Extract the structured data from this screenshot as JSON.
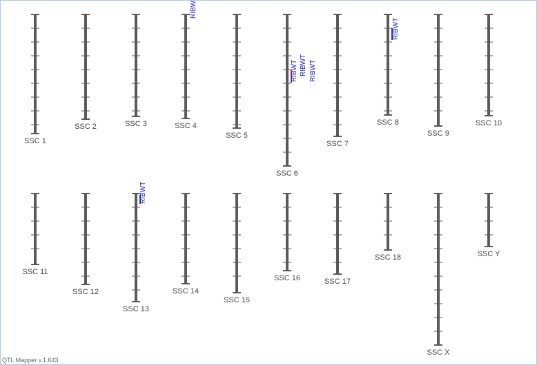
{
  "chromosomes": [
    {
      "label": "SSC 1",
      "qtls": []
    },
    {
      "label": "SSC 2",
      "qtls": []
    },
    {
      "label": "SSC 3",
      "qtls": []
    },
    {
      "label": "SSC 4",
      "qtls": [
        {
          "label": "RIBWT"
        }
      ]
    },
    {
      "label": "SSC 5",
      "qtls": []
    },
    {
      "label": "SSC 6",
      "qtls": [
        {
          "label": "RIBWT"
        },
        {
          "label": "RIBWT"
        },
        {
          "label": "RIBWT"
        }
      ]
    },
    {
      "label": "SSC 7",
      "qtls": []
    },
    {
      "label": "SSC 8",
      "qtls": [
        {
          "label": "RIBWT"
        }
      ]
    },
    {
      "label": "SSC 9",
      "qtls": []
    },
    {
      "label": "SSC 10",
      "qtls": []
    },
    {
      "label": "SSC 11",
      "qtls": []
    },
    {
      "label": "SSC 12",
      "qtls": []
    },
    {
      "label": "SSC 13",
      "qtls": [
        {
          "label": "RIBWT"
        }
      ]
    },
    {
      "label": "SSC 14",
      "qtls": []
    },
    {
      "label": "SSC 15",
      "qtls": []
    },
    {
      "label": "SSC 16",
      "qtls": []
    },
    {
      "label": "SSC 17",
      "qtls": []
    },
    {
      "label": "SSC 18",
      "qtls": []
    },
    {
      "label": "SSC X",
      "qtls": []
    },
    {
      "label": "SSC Y",
      "qtls": []
    }
  ],
  "footer": "QTL Mapper v.1.643"
}
